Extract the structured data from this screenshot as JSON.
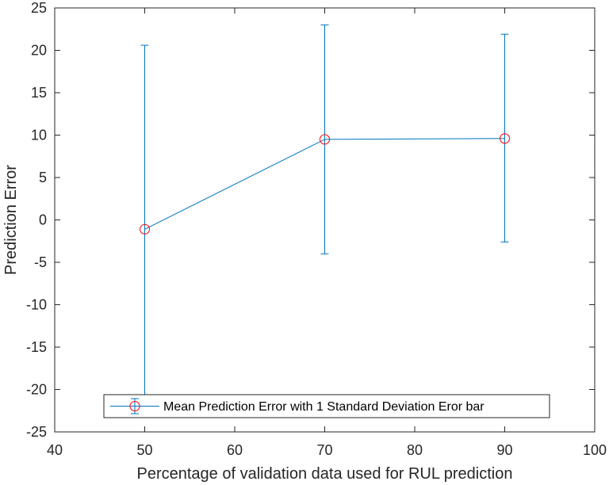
{
  "chart_data": {
    "type": "line",
    "xlabel": "Percentage of validation data used for RUL prediction",
    "ylabel": "Prediction Error",
    "xlim": [
      40,
      100
    ],
    "ylim": [
      -25,
      25
    ],
    "xticks": [
      40,
      50,
      60,
      70,
      80,
      90,
      100
    ],
    "yticks": [
      -25,
      -20,
      -15,
      -10,
      -5,
      0,
      5,
      10,
      15,
      20,
      25
    ],
    "grid": false,
    "legend_position": "bottom-center",
    "series": [
      {
        "name": "Mean Prediction Error with 1 Standard Deviation Eror bar",
        "x": [
          50,
          70,
          90
        ],
        "y": [
          -1.1,
          9.5,
          9.6
        ],
        "error_lower": [
          -22.9,
          -4.0,
          -2.6
        ],
        "error_upper": [
          20.6,
          23.0,
          21.9
        ],
        "line_color": "#0072BD",
        "marker_color": "#FF0000",
        "marker": "circle"
      }
    ]
  }
}
